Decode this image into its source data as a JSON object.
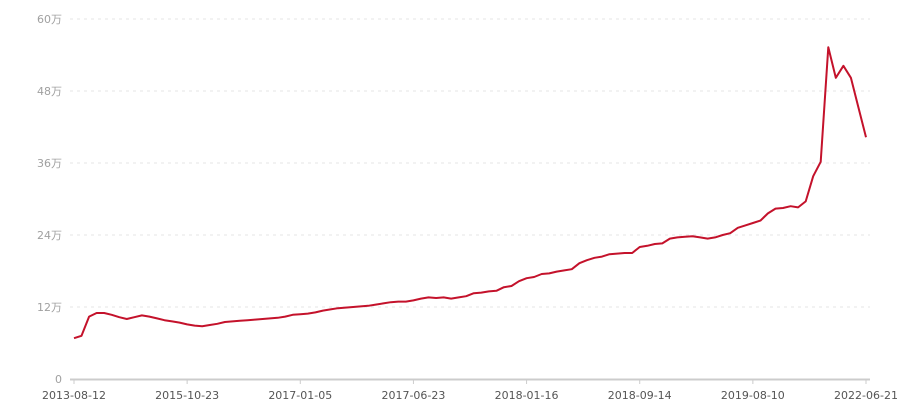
{
  "chart_data": {
    "type": "line",
    "title": "",
    "xlabel": "",
    "ylabel": "",
    "ylim": [
      0,
      60
    ],
    "y_unit": "万",
    "y_ticks": [
      "0",
      "12万",
      "24万",
      "36万",
      "48万",
      "60万"
    ],
    "y_tick_values": [
      0,
      12,
      24,
      36,
      48,
      60
    ],
    "x_ticks": [
      "2013-08-12",
      "2015-10-23",
      "2017-01-05",
      "2017-06-23",
      "2018-01-16",
      "2018-09-14",
      "2019-08-10",
      "2022-06-21"
    ],
    "grid": true,
    "legend": "none",
    "colors": {
      "line": "#c4122b",
      "grid": "#e6e6e6",
      "axis": "#cccccc"
    },
    "series": [
      {
        "values": [
          6.8,
          7.2,
          10.4,
          11.0,
          11.0,
          10.7,
          10.3,
          10.0,
          10.3,
          10.6,
          10.4,
          10.1,
          9.8,
          9.6,
          9.4,
          9.1,
          8.9,
          8.8,
          9.0,
          9.2,
          9.5,
          9.6,
          9.7,
          9.8,
          9.9,
          10.0,
          10.1,
          10.2,
          10.4,
          10.7,
          10.8,
          10.9,
          11.1,
          11.4,
          11.6,
          11.8,
          11.9,
          12.0,
          12.1,
          12.2,
          12.4,
          12.6,
          12.8,
          12.9,
          12.9,
          13.1,
          13.4,
          13.6,
          13.5,
          13.6,
          13.4,
          13.6,
          13.8,
          14.3,
          14.4,
          14.6,
          14.7,
          15.3,
          15.5,
          16.3,
          16.8,
          17.0,
          17.5,
          17.6,
          17.9,
          18.1,
          18.3,
          19.3,
          19.8,
          20.2,
          20.4,
          20.8,
          20.9,
          21.0,
          21.0,
          22.0,
          22.2,
          22.5,
          22.6,
          23.4,
          23.6,
          23.7,
          23.8,
          23.6,
          23.4,
          23.6,
          24.0,
          24.3,
          25.2,
          25.6,
          26.0,
          26.4,
          27.6,
          28.4,
          28.5,
          28.8,
          28.6,
          29.6,
          33.8,
          36.2,
          55.3,
          50.2,
          52.2,
          50.2,
          45.2,
          40.3
        ]
      }
    ]
  }
}
